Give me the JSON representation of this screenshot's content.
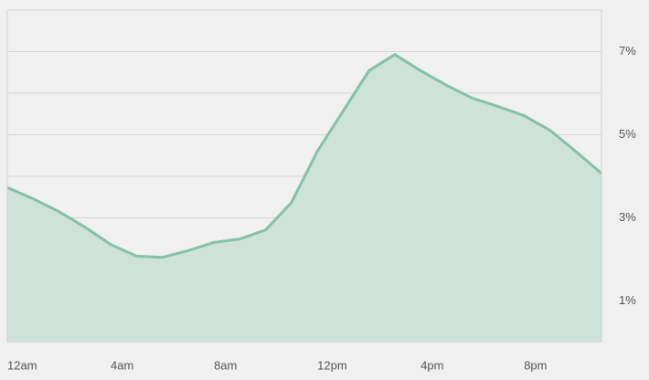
{
  "chart_data": {
    "type": "area",
    "categories": [
      "12am",
      null,
      null,
      null,
      "4am",
      null,
      null,
      null,
      "8am",
      null,
      null,
      null,
      "12pm",
      null,
      null,
      null,
      "4pm",
      null,
      null,
      null,
      "8pm",
      null,
      null,
      null
    ],
    "values": [
      3.73,
      3.46,
      3.15,
      2.78,
      2.36,
      2.08,
      2.05,
      2.21,
      2.41,
      2.49,
      2.71,
      3.37,
      4.6,
      5.57,
      6.54,
      6.93,
      6.54,
      6.19,
      5.88,
      5.68,
      5.46,
      5.11,
      4.6,
      4.07
    ],
    "color": "#84c1a6",
    "fill": "#cde3da",
    "ylim": [
      0,
      8
    ],
    "yticks": [
      {
        "value": 1,
        "label": "1%"
      },
      {
        "value": 3,
        "label": "3%"
      },
      {
        "value": 5,
        "label": "5%"
      },
      {
        "value": 7,
        "label": "7%"
      }
    ],
    "minor_yticks": [
      2,
      4,
      6,
      8
    ],
    "grid": true
  }
}
